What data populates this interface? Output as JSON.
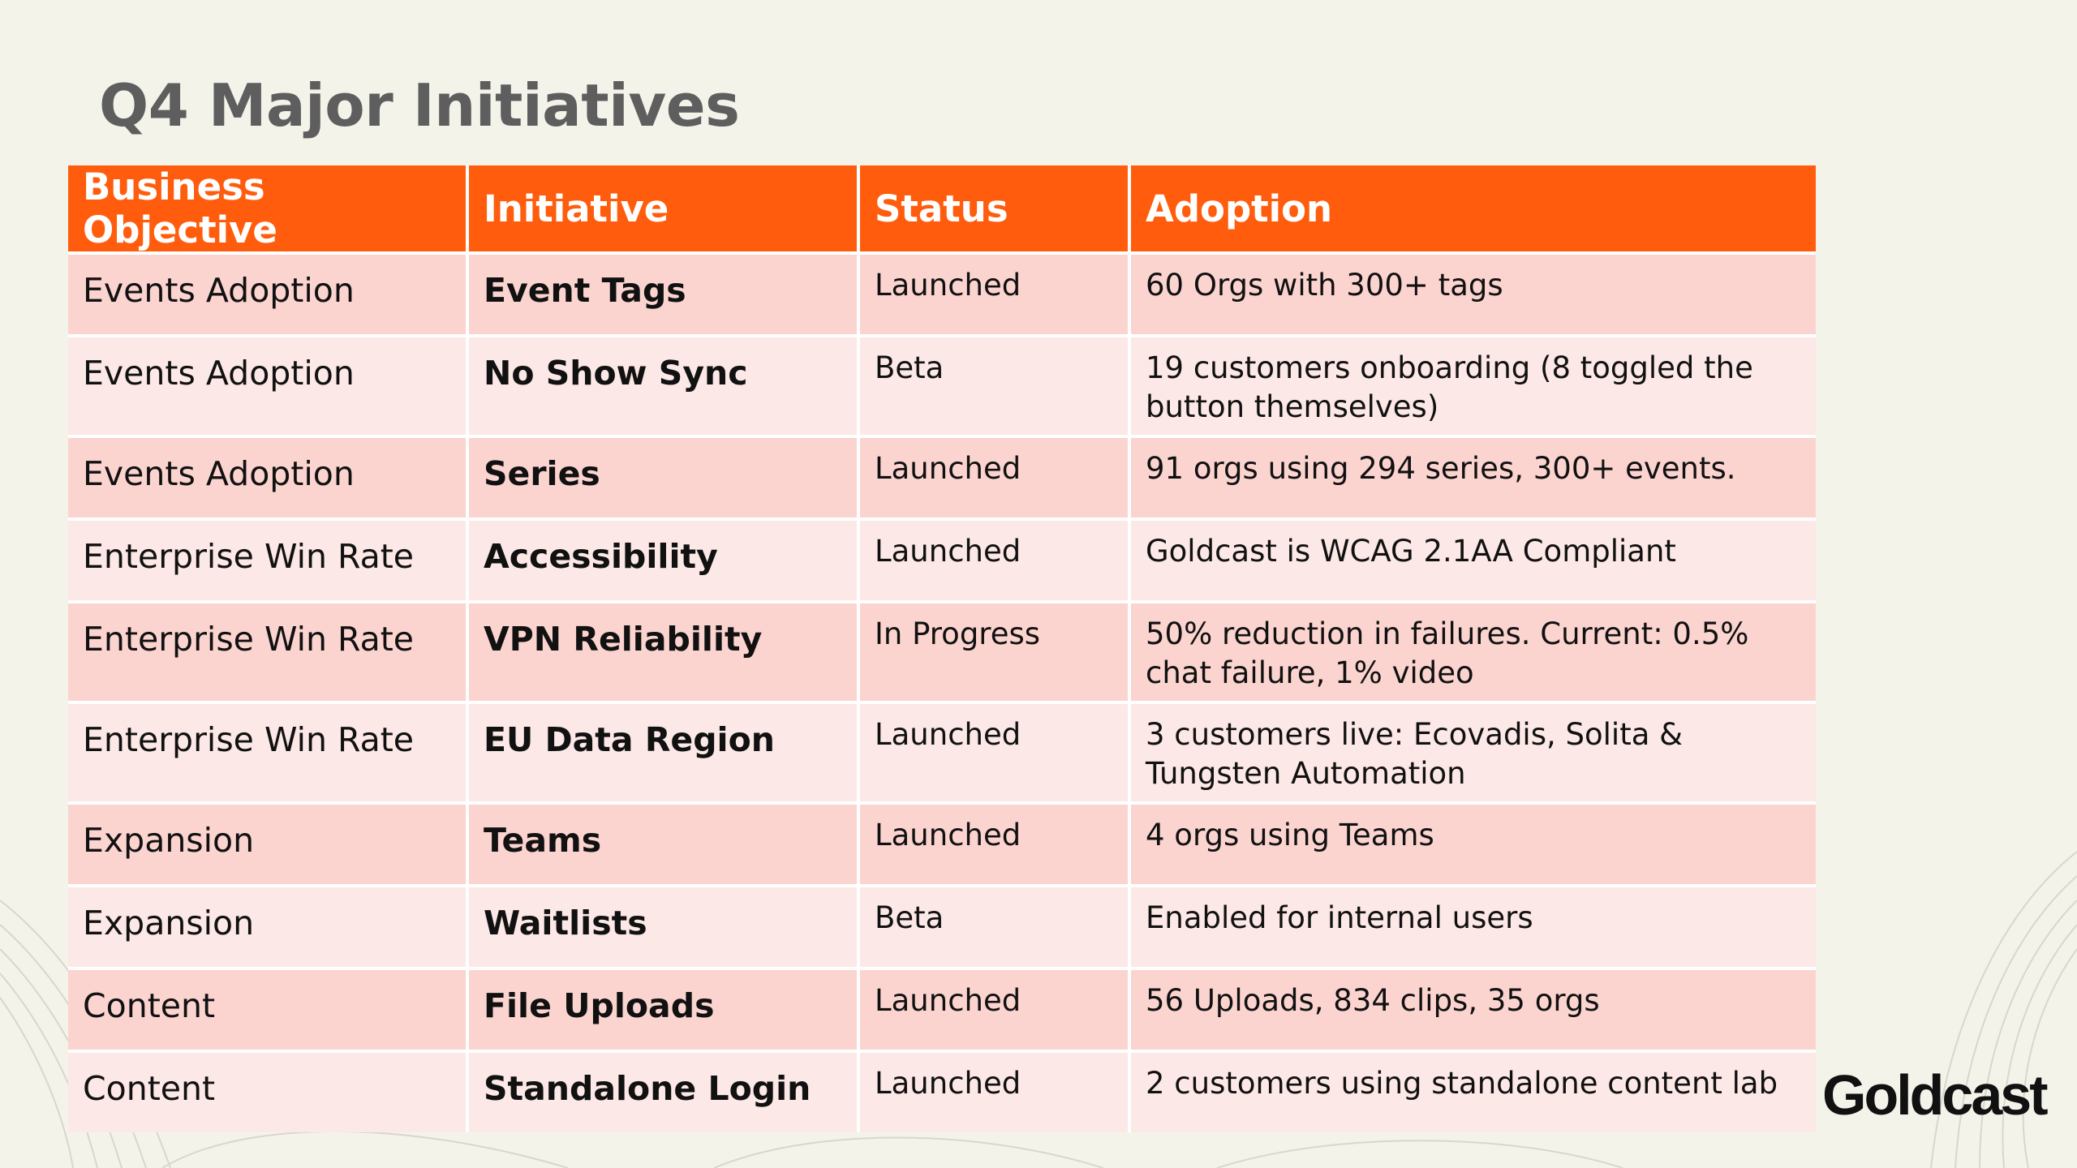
{
  "slide": {
    "title": "Q4 Major Initiatives"
  },
  "table": {
    "headers": [
      "Business Objective",
      "Initiative",
      "Status",
      "Adoption"
    ],
    "rows": [
      {
        "objective": "Events Adoption",
        "initiative": "Event Tags",
        "status": "Launched",
        "adoption": "60 Orgs with 300+ tags"
      },
      {
        "objective": "Events Adoption",
        "initiative": "No Show Sync",
        "status": "Beta",
        "adoption": "19 customers onboarding (8 toggled the button themselves)"
      },
      {
        "objective": "Events Adoption",
        "initiative": "Series",
        "status": "Launched",
        "adoption": "91 orgs using 294 series, 300+ events."
      },
      {
        "objective": "Enterprise Win Rate",
        "initiative": "Accessibility",
        "status": "Launched",
        "adoption": "Goldcast is WCAG 2.1AA Compliant"
      },
      {
        "objective": "Enterprise Win Rate",
        "initiative": "VPN Reliability",
        "status": "In Progress",
        "adoption": "50% reduction in failures. Current: 0.5% chat failure, 1% video"
      },
      {
        "objective": "Enterprise Win Rate",
        "initiative": "EU Data Region",
        "status": "Launched",
        "adoption": "3 customers live: Ecovadis, Solita & Tungsten Automation"
      },
      {
        "objective": "Expansion",
        "initiative": "Teams",
        "status": "Launched",
        "adoption": "4 orgs using Teams"
      },
      {
        "objective": "Expansion",
        "initiative": "Waitlists",
        "status": "Beta",
        "adoption": "Enabled for internal users"
      },
      {
        "objective": "Content",
        "initiative": "File Uploads",
        "status": "Launched",
        "adoption": "56 Uploads, 834 clips, 35 orgs"
      },
      {
        "objective": "Content",
        "initiative": "Standalone Login",
        "status": "Launched",
        "adoption": "2 customers using standalone content lab"
      }
    ]
  },
  "branding": {
    "logo_text": "Goldcast"
  },
  "colors": {
    "header_bg": "#ff5d0d",
    "row_odd": "#fbd4d0",
    "row_even": "#fce8e6",
    "background": "#f4f3ea",
    "title": "#5e5e5e"
  }
}
